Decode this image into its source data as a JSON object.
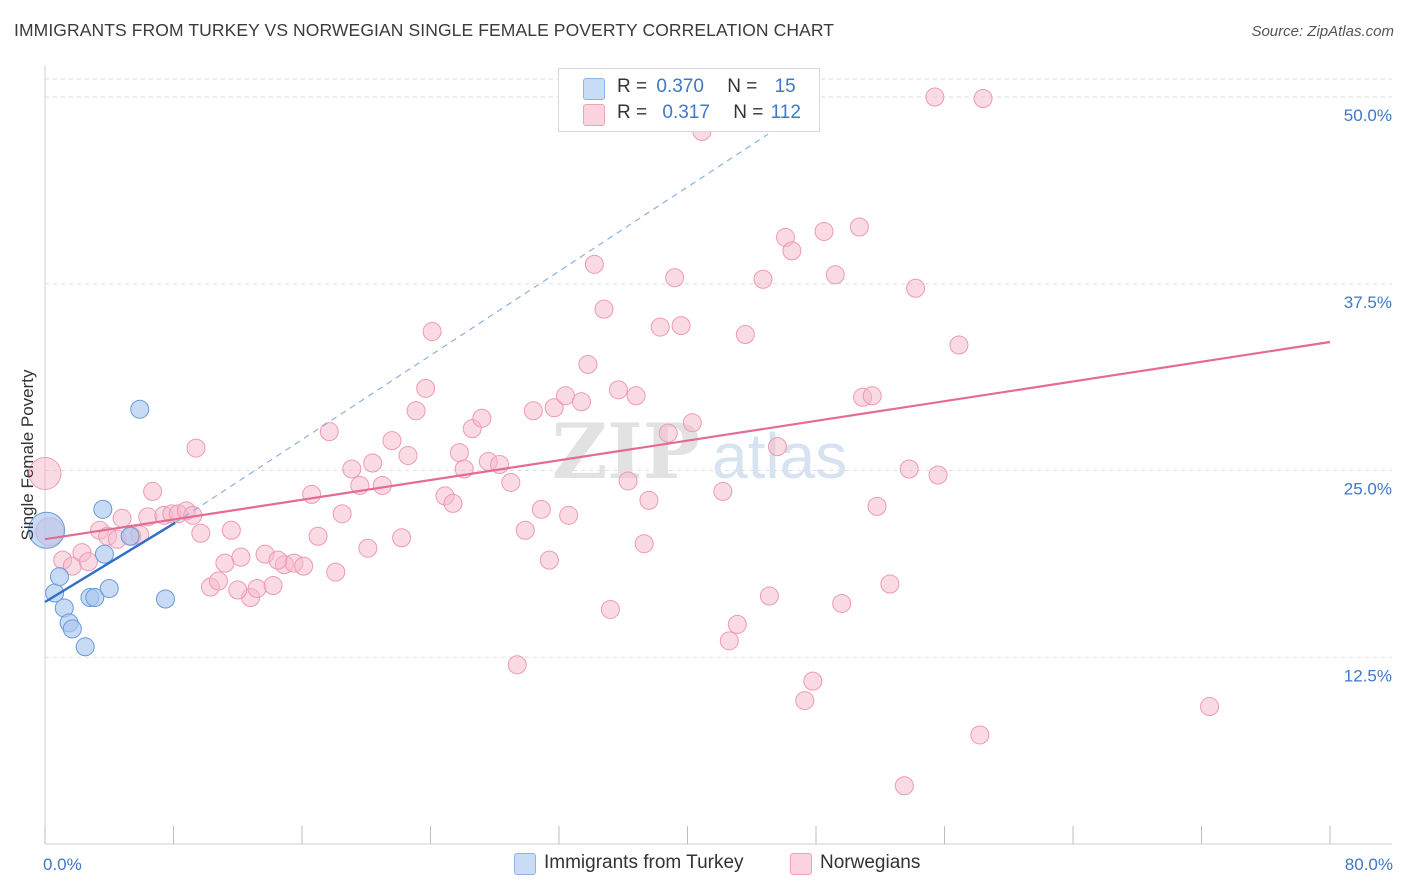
{
  "header": {
    "title": "IMMIGRANTS FROM TURKEY VS NORWEGIAN SINGLE FEMALE POVERTY CORRELATION CHART",
    "source": "Source: ZipAtlas.com"
  },
  "watermark": {
    "zip": "ZIP",
    "atlas": "atlas"
  },
  "legend": {
    "rows": [
      {
        "r_label": "R =",
        "r_value": "0.370",
        "n_label": "N =",
        "n_value": "15",
        "color": "#a9c8ef"
      },
      {
        "r_label": "R =",
        "r_value": "0.317",
        "n_label": "N =",
        "n_value": "112",
        "color": "#f6b8ca"
      }
    ]
  },
  "bottom_legend": [
    {
      "label": "Immigrants from Turkey",
      "color": "#a9c8ef"
    },
    {
      "label": "Norwegians",
      "color": "#f6b8ca"
    }
  ],
  "chart_data": {
    "type": "scatter",
    "title": "IMMIGRANTS FROM TURKEY VS NORWEGIAN SINGLE FEMALE POVERTY CORRELATION CHART",
    "xlabel": "",
    "ylabel": "Single Female Poverty",
    "xlim": [
      0,
      80
    ],
    "ylim": [
      0,
      52.5
    ],
    "x_tick_labels": [
      "0.0%",
      "80.0%"
    ],
    "y_ticks": [
      12.5,
      25.0,
      37.5,
      50.0
    ],
    "y_tick_labels": [
      "12.5%",
      "25.0%",
      "37.5%",
      "50.0%"
    ],
    "grid": "horizontal dashed",
    "legend_position": "top-center",
    "series": [
      {
        "name": "Immigrants from Turkey",
        "color": "#5b93d8",
        "fill": "#a9c8ef",
        "trend": {
          "x": [
            0,
            8.1
          ],
          "y": [
            16.2,
            21.5
          ],
          "extended_to": [
            45,
            47.5
          ]
        },
        "points": [
          [
            0.1,
            21.0,
            18
          ],
          [
            0.6,
            16.8,
            9
          ],
          [
            0.9,
            17.9,
            9
          ],
          [
            1.2,
            15.8,
            9
          ],
          [
            1.5,
            14.8,
            9
          ],
          [
            1.7,
            14.4,
            9
          ],
          [
            2.5,
            13.2,
            9
          ],
          [
            2.8,
            16.5,
            9
          ],
          [
            3.1,
            16.5,
            9
          ],
          [
            3.7,
            19.4,
            9
          ],
          [
            3.6,
            22.4,
            9
          ],
          [
            4.0,
            17.1,
            9
          ],
          [
            5.3,
            20.6,
            9
          ],
          [
            5.9,
            29.1,
            9
          ],
          [
            7.5,
            16.4,
            9
          ]
        ]
      },
      {
        "name": "Norwegians",
        "color": "#e8759c",
        "fill": "#f6b8ca",
        "trend": {
          "x": [
            0,
            80
          ],
          "y": [
            20.4,
            33.6
          ]
        },
        "points": [
          [
            0.0,
            24.8,
            16
          ],
          [
            0.3,
            20.9,
            14
          ],
          [
            1.1,
            19.0,
            9
          ],
          [
            1.7,
            18.6,
            9
          ],
          [
            2.3,
            19.5,
            9
          ],
          [
            2.7,
            18.9,
            9
          ],
          [
            3.4,
            21.0,
            9
          ],
          [
            3.9,
            20.6,
            9
          ],
          [
            4.5,
            20.4,
            9
          ],
          [
            4.8,
            21.8,
            9
          ],
          [
            5.4,
            20.6,
            9
          ],
          [
            5.9,
            20.7,
            9
          ],
          [
            6.4,
            21.9,
            9
          ],
          [
            6.7,
            23.6,
            9
          ],
          [
            7.4,
            22.0,
            9
          ],
          [
            7.9,
            22.1,
            9
          ],
          [
            8.3,
            22.1,
            9
          ],
          [
            8.8,
            22.3,
            9
          ],
          [
            9.4,
            26.5,
            9
          ],
          [
            9.7,
            20.8,
            9
          ],
          [
            10.3,
            17.2,
            9
          ],
          [
            10.8,
            17.6,
            9
          ],
          [
            11.2,
            18.8,
            9
          ],
          [
            11.6,
            21.0,
            9
          ],
          [
            12.2,
            19.2,
            9
          ],
          [
            12.8,
            16.5,
            9
          ],
          [
            13.2,
            17.1,
            9
          ],
          [
            13.7,
            19.4,
            9
          ],
          [
            14.2,
            17.3,
            9
          ],
          [
            14.9,
            18.7,
            9
          ],
          [
            15.5,
            18.8,
            9
          ],
          [
            16.1,
            18.6,
            9
          ],
          [
            16.6,
            23.4,
            9
          ],
          [
            17.0,
            20.6,
            9
          ],
          [
            17.7,
            27.6,
            9
          ],
          [
            18.1,
            18.2,
            9
          ],
          [
            18.5,
            22.1,
            9
          ],
          [
            19.1,
            25.1,
            9
          ],
          [
            19.6,
            24.0,
            9
          ],
          [
            20.1,
            19.8,
            9
          ],
          [
            20.4,
            25.5,
            9
          ],
          [
            21.0,
            24.0,
            9
          ],
          [
            21.6,
            27.0,
            9
          ],
          [
            22.2,
            20.5,
            9
          ],
          [
            22.6,
            26.0,
            9
          ],
          [
            23.1,
            29.0,
            9
          ],
          [
            23.7,
            30.5,
            9
          ],
          [
            24.1,
            34.3,
            9
          ],
          [
            24.9,
            23.3,
            9
          ],
          [
            25.4,
            22.8,
            9
          ],
          [
            25.8,
            26.2,
            9
          ],
          [
            26.1,
            25.1,
            9
          ],
          [
            26.6,
            27.8,
            9
          ],
          [
            27.2,
            28.5,
            9
          ],
          [
            27.6,
            25.6,
            9
          ],
          [
            28.3,
            25.4,
            9
          ],
          [
            29.0,
            24.2,
            9
          ],
          [
            29.9,
            21.0,
            9
          ],
          [
            30.4,
            29.0,
            9
          ],
          [
            30.9,
            22.4,
            9
          ],
          [
            31.4,
            19.0,
            9
          ],
          [
            31.7,
            29.2,
            9
          ],
          [
            32.4,
            30.0,
            9
          ],
          [
            32.6,
            22.0,
            9
          ],
          [
            33.4,
            29.6,
            9
          ],
          [
            33.8,
            32.1,
            9
          ],
          [
            34.2,
            38.8,
            9
          ],
          [
            34.8,
            35.8,
            9
          ],
          [
            35.2,
            15.7,
            9
          ],
          [
            35.7,
            30.4,
            9
          ],
          [
            36.3,
            24.3,
            9
          ],
          [
            36.8,
            30.0,
            9
          ],
          [
            37.3,
            20.1,
            9
          ],
          [
            37.6,
            23.0,
            9
          ],
          [
            38.3,
            34.6,
            9
          ],
          [
            38.8,
            27.5,
            9
          ],
          [
            39.2,
            37.9,
            9
          ],
          [
            39.6,
            34.7,
            9
          ],
          [
            40.3,
            28.2,
            9
          ],
          [
            40.9,
            47.7,
            9
          ],
          [
            42.2,
            23.6,
            9
          ],
          [
            42.6,
            13.6,
            9
          ],
          [
            43.1,
            14.7,
            9
          ],
          [
            43.6,
            34.1,
            9
          ],
          [
            44.7,
            37.8,
            9
          ],
          [
            45.1,
            16.6,
            9
          ],
          [
            45.6,
            26.6,
            9
          ],
          [
            46.1,
            40.6,
            9
          ],
          [
            46.5,
            39.7,
            9
          ],
          [
            47.3,
            9.6,
            9
          ],
          [
            47.8,
            10.9,
            9
          ],
          [
            48.5,
            41.0,
            9
          ],
          [
            49.2,
            38.1,
            9
          ],
          [
            49.6,
            16.1,
            9
          ],
          [
            50.7,
            41.3,
            9
          ],
          [
            50.9,
            29.9,
            9
          ],
          [
            51.5,
            30.0,
            9
          ],
          [
            51.8,
            22.6,
            9
          ],
          [
            52.6,
            17.4,
            9
          ],
          [
            53.5,
            3.9,
            9
          ],
          [
            53.8,
            25.1,
            9
          ],
          [
            54.2,
            37.2,
            9
          ],
          [
            55.6,
            24.7,
            9
          ],
          [
            55.4,
            50.0,
            9
          ],
          [
            56.9,
            33.4,
            9
          ],
          [
            58.2,
            7.3,
            9
          ],
          [
            58.4,
            49.9,
            9
          ],
          [
            72.5,
            9.2,
            9
          ],
          [
            29.4,
            12.0,
            9
          ],
          [
            12.0,
            17.0,
            9
          ],
          [
            9.2,
            22.0,
            9
          ],
          [
            14.5,
            19.0,
            9
          ]
        ]
      }
    ]
  }
}
